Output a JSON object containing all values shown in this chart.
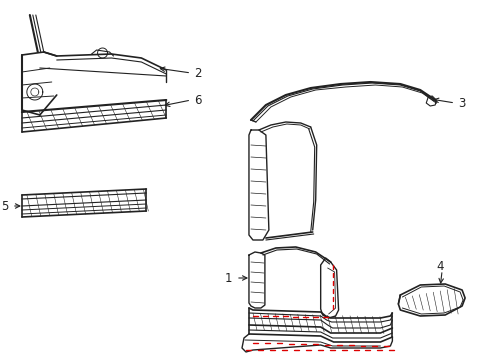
{
  "background_color": "#ffffff",
  "line_color": "#222222",
  "red_color": "#dd0000",
  "label_color": "#000000",
  "fig_width": 4.89,
  "fig_height": 3.6,
  "dpi": 100,
  "label_fontsize": 8.5
}
